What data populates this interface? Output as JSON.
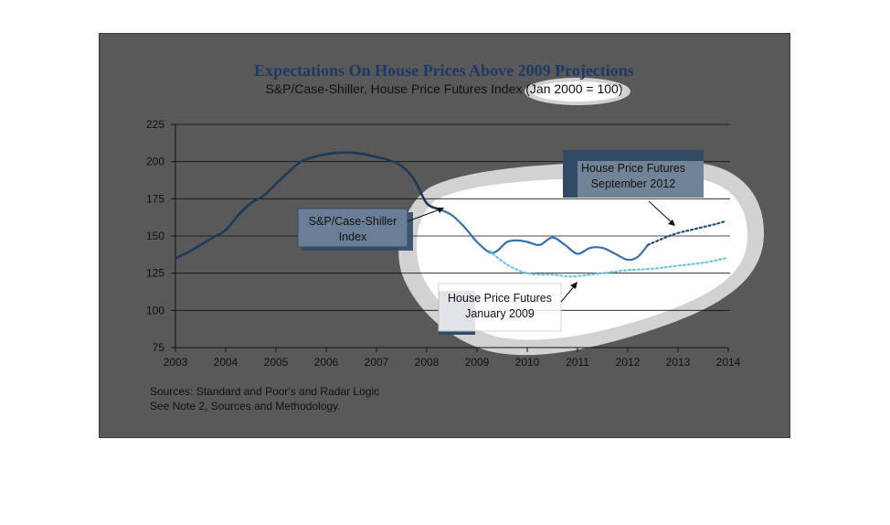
{
  "chart_data": {
    "type": "line",
    "title": "Expectations On House Prices Above 2009 Projections",
    "subtitle": "S&P/Case-Shiller, House Price Futures Index (Jan 2000 = 100)",
    "xlim": [
      2003,
      2014
    ],
    "ylim": [
      75,
      225
    ],
    "x_ticks": [
      "2003",
      "2004",
      "2005",
      "2006",
      "2007",
      "2008",
      "2009",
      "2010",
      "2011",
      "2012",
      "2013",
      "2014"
    ],
    "y_ticks": [
      "75",
      "100",
      "125",
      "150",
      "175",
      "200",
      "225"
    ],
    "grid": "horizontal",
    "series": [
      {
        "name": "S&P/Case-Shiller Index",
        "color": "#1f3a57",
        "highlight_color": "#3b6fa8",
        "style": "solid",
        "x": [
          2003.0,
          2003.25,
          2003.5,
          2003.75,
          2004.0,
          2004.25,
          2004.5,
          2004.75,
          2005.0,
          2005.25,
          2005.5,
          2005.75,
          2006.0,
          2006.25,
          2006.5,
          2006.75,
          2007.0,
          2007.25,
          2007.5,
          2007.75,
          2008.0,
          2008.25,
          2008.5,
          2008.75,
          2009.0,
          2009.25,
          2009.4,
          2009.6,
          2009.8,
          2010.0,
          2010.25,
          2010.5,
          2010.75,
          2011.0,
          2011.25,
          2011.5,
          2011.75,
          2012.0,
          2012.2,
          2012.4
        ],
        "values": [
          135,
          139,
          144,
          149,
          154,
          164,
          172,
          177,
          185,
          193,
          200,
          203,
          205,
          206,
          206,
          205,
          203,
          201,
          197,
          188,
          172,
          168,
          164,
          156,
          146,
          139,
          140,
          146,
          147,
          146,
          144,
          149,
          144,
          138,
          142,
          142,
          138,
          134,
          136,
          144
        ]
      },
      {
        "name": "House Price Futures September 2012",
        "color": "#1f4e79",
        "style": "dotted",
        "x": [
          2012.4,
          2012.75,
          2013.0,
          2013.25,
          2013.5,
          2013.75,
          2013.95
        ],
        "values": [
          144,
          149,
          152,
          154,
          156,
          158,
          160
        ]
      },
      {
        "name": "House Price Futures January 2009",
        "color": "#6cc3e6",
        "style": "dotted",
        "x": [
          2009.25,
          2009.5,
          2009.75,
          2010.0,
          2010.25,
          2010.5,
          2010.75,
          2011.0,
          2011.5,
          2012.0,
          2012.5,
          2013.0,
          2013.5,
          2013.95
        ],
        "values": [
          140,
          133,
          128,
          125,
          124,
          124,
          123,
          123,
          125,
          127,
          128,
          130,
          132,
          135
        ]
      }
    ],
    "annotations": [
      {
        "name": "sp-callout",
        "lines": [
          "S&P/Case-Shiller",
          "Index"
        ]
      },
      {
        "name": "futures-2012-callout",
        "lines": [
          "House Price Futures",
          "September 2012"
        ]
      },
      {
        "name": "futures-2009-callout",
        "lines": [
          "House Price Futures",
          "January 2009"
        ]
      }
    ],
    "sources": [
      "Sources:  Standard and Poor's and Radar Logic",
      "See Note 2, Sources and Methodology."
    ]
  }
}
